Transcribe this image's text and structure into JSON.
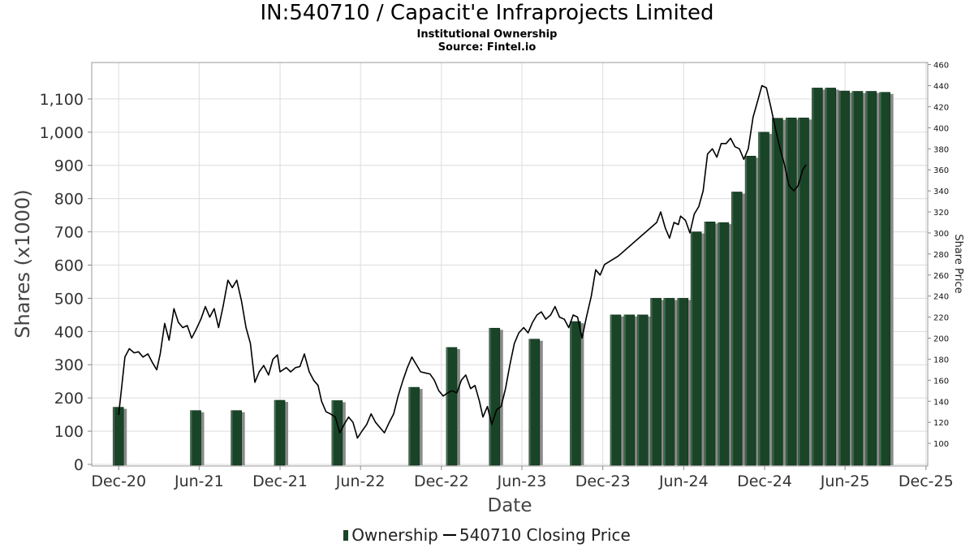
{
  "chart_data": {
    "type": "bar",
    "title": "IN:540710 / Capacit'e Infraprojects Limited",
    "subtitle": "Institutional Ownership",
    "source": "Source: Fintel.io",
    "xlabel": "Date",
    "ylabel": "Shares (x1000)",
    "y2label": "Share Price",
    "ylim": [
      0,
      1200
    ],
    "y2lim": [
      80,
      462
    ],
    "yticks": [
      "0",
      "100",
      "200",
      "300",
      "400",
      "500",
      "600",
      "700",
      "800",
      "900",
      "1,000",
      "1,100"
    ],
    "y2ticks": [
      "100",
      "120",
      "140",
      "160",
      "180",
      "200",
      "220",
      "240",
      "260",
      "280",
      "300",
      "320",
      "340",
      "360",
      "380",
      "400",
      "420",
      "440",
      "460"
    ],
    "xticks": [
      "Dec-20",
      "Jun-21",
      "Dec-21",
      "Jun-22",
      "Dec-22",
      "Jun-23",
      "Dec-23",
      "Jun-24",
      "Dec-24",
      "Jun-25",
      "Dec-25"
    ],
    "grid": true,
    "legend_position": "bottom",
    "colors": {
      "bar": "#1a4428",
      "bar_shadow": "#8a8a8a",
      "line": "#000000",
      "grid": "#dcdcdc"
    },
    "series": [
      {
        "name": "Ownership",
        "type": "bar",
        "points": [
          [
            "2020-12-01",
            172
          ],
          [
            "2021-05-25",
            162
          ],
          [
            "2021-08-25",
            162
          ],
          [
            "2021-12-01",
            193
          ],
          [
            "2022-04-10",
            192
          ],
          [
            "2022-10-01",
            232
          ],
          [
            "2022-12-25",
            352
          ],
          [
            "2023-04-01",
            410
          ],
          [
            "2023-06-30",
            377
          ],
          [
            "2023-10-01",
            430
          ],
          [
            "2023-12-31",
            450
          ],
          [
            "2024-01-31",
            450
          ],
          [
            "2024-03-01",
            450
          ],
          [
            "2024-03-31",
            500
          ],
          [
            "2024-04-30",
            500
          ],
          [
            "2024-05-31",
            500
          ],
          [
            "2024-06-30",
            700
          ],
          [
            "2024-07-31",
            730
          ],
          [
            "2024-08-31",
            728
          ],
          [
            "2024-09-30",
            820
          ],
          [
            "2024-10-31",
            928
          ],
          [
            "2024-11-30",
            1000
          ],
          [
            "2024-12-31",
            1042
          ],
          [
            "2025-01-31",
            1043
          ],
          [
            "2025-02-28",
            1043
          ],
          [
            "2025-03-31",
            1133
          ],
          [
            "2025-04-30",
            1133
          ],
          [
            "2025-05-31",
            1124
          ],
          [
            "2025-06-30",
            1123
          ],
          [
            "2025-07-31",
            1123
          ],
          [
            "2025-08-31",
            1120
          ]
        ]
      },
      {
        "name": "540710 Closing Price",
        "type": "line",
        "points": [
          [
            "2020-12-01",
            127
          ],
          [
            "2020-12-15",
            182
          ],
          [
            "2020-12-25",
            190
          ],
          [
            "2021-01-05",
            186
          ],
          [
            "2021-01-15",
            187
          ],
          [
            "2021-01-25",
            182
          ],
          [
            "2021-02-05",
            185
          ],
          [
            "2021-02-15",
            177
          ],
          [
            "2021-02-25",
            170
          ],
          [
            "2021-03-05",
            185
          ],
          [
            "2021-03-15",
            214
          ],
          [
            "2021-03-25",
            198
          ],
          [
            "2021-04-05",
            228
          ],
          [
            "2021-04-15",
            215
          ],
          [
            "2021-04-25",
            210
          ],
          [
            "2021-05-05",
            212
          ],
          [
            "2021-05-15",
            200
          ],
          [
            "2021-05-25",
            208
          ],
          [
            "2021-06-05",
            218
          ],
          [
            "2021-06-15",
            230
          ],
          [
            "2021-06-25",
            220
          ],
          [
            "2021-07-05",
            228
          ],
          [
            "2021-07-15",
            210
          ],
          [
            "2021-07-25",
            230
          ],
          [
            "2021-08-05",
            255
          ],
          [
            "2021-08-15",
            248
          ],
          [
            "2021-08-25",
            255
          ],
          [
            "2021-09-05",
            235
          ],
          [
            "2021-09-15",
            210
          ],
          [
            "2021-09-25",
            195
          ],
          [
            "2021-10-05",
            158
          ],
          [
            "2021-10-15",
            168
          ],
          [
            "2021-10-25",
            174
          ],
          [
            "2021-11-05",
            165
          ],
          [
            "2021-11-15",
            180
          ],
          [
            "2021-11-25",
            184
          ],
          [
            "2021-12-01",
            168
          ],
          [
            "2021-12-15",
            172
          ],
          [
            "2021-12-25",
            168
          ],
          [
            "2022-01-05",
            172
          ],
          [
            "2022-01-15",
            173
          ],
          [
            "2022-01-25",
            185
          ],
          [
            "2022-02-05",
            168
          ],
          [
            "2022-02-15",
            160
          ],
          [
            "2022-02-25",
            155
          ],
          [
            "2022-03-05",
            140
          ],
          [
            "2022-03-15",
            130
          ],
          [
            "2022-03-25",
            128
          ],
          [
            "2022-04-05",
            125
          ],
          [
            "2022-04-15",
            110
          ],
          [
            "2022-04-25",
            118
          ],
          [
            "2022-05-05",
            125
          ],
          [
            "2022-05-15",
            120
          ],
          [
            "2022-05-25",
            105
          ],
          [
            "2022-06-05",
            112
          ],
          [
            "2022-06-15",
            118
          ],
          [
            "2022-06-25",
            128
          ],
          [
            "2022-07-05",
            120
          ],
          [
            "2022-07-15",
            115
          ],
          [
            "2022-07-25",
            110
          ],
          [
            "2022-08-05",
            120
          ],
          [
            "2022-08-15",
            128
          ],
          [
            "2022-08-25",
            145
          ],
          [
            "2022-09-05",
            160
          ],
          [
            "2022-09-15",
            172
          ],
          [
            "2022-09-25",
            182
          ],
          [
            "2022-10-05",
            175
          ],
          [
            "2022-10-15",
            168
          ],
          [
            "2022-10-25",
            167
          ],
          [
            "2022-11-05",
            166
          ],
          [
            "2022-11-15",
            160
          ],
          [
            "2022-11-25",
            150
          ],
          [
            "2022-12-05",
            145
          ],
          [
            "2022-12-15",
            148
          ],
          [
            "2022-12-25",
            150
          ],
          [
            "2023-01-05",
            148
          ],
          [
            "2023-01-15",
            160
          ],
          [
            "2023-01-25",
            165
          ],
          [
            "2023-02-05",
            152
          ],
          [
            "2023-02-15",
            155
          ],
          [
            "2023-02-25",
            140
          ],
          [
            "2023-03-05",
            125
          ],
          [
            "2023-03-15",
            135
          ],
          [
            "2023-03-25",
            118
          ],
          [
            "2023-04-05",
            132
          ],
          [
            "2023-04-15",
            135
          ],
          [
            "2023-04-25",
            152
          ],
          [
            "2023-05-05",
            175
          ],
          [
            "2023-05-15",
            195
          ],
          [
            "2023-05-25",
            205
          ],
          [
            "2023-06-05",
            210
          ],
          [
            "2023-06-15",
            205
          ],
          [
            "2023-06-25",
            215
          ],
          [
            "2023-07-05",
            222
          ],
          [
            "2023-07-15",
            225
          ],
          [
            "2023-07-25",
            218
          ],
          [
            "2023-08-05",
            222
          ],
          [
            "2023-08-15",
            230
          ],
          [
            "2023-08-25",
            220
          ],
          [
            "2023-09-05",
            218
          ],
          [
            "2023-09-15",
            210
          ],
          [
            "2023-09-25",
            222
          ],
          [
            "2023-10-05",
            220
          ],
          [
            "2023-10-15",
            200
          ],
          [
            "2023-10-25",
            220
          ],
          [
            "2023-11-05",
            240
          ],
          [
            "2023-11-15",
            265
          ],
          [
            "2023-11-25",
            260
          ],
          [
            "2023-12-05",
            270
          ],
          [
            "2024-01-05",
            278
          ],
          [
            "2024-04-01",
            310
          ],
          [
            "2024-04-10",
            320
          ],
          [
            "2024-04-20",
            305
          ],
          [
            "2024-04-30",
            295
          ],
          [
            "2024-05-10",
            310
          ],
          [
            "2024-05-20",
            308
          ],
          [
            "2024-05-25",
            316
          ],
          [
            "2024-06-05",
            312
          ],
          [
            "2024-06-15",
            300
          ],
          [
            "2024-06-25",
            318
          ],
          [
            "2024-07-05",
            325
          ],
          [
            "2024-07-15",
            340
          ],
          [
            "2024-07-25",
            375
          ],
          [
            "2024-08-05",
            380
          ],
          [
            "2024-08-15",
            372
          ],
          [
            "2024-08-25",
            385
          ],
          [
            "2024-09-05",
            385
          ],
          [
            "2024-09-15",
            390
          ],
          [
            "2024-09-25",
            382
          ],
          [
            "2024-10-05",
            380
          ],
          [
            "2024-10-15",
            370
          ],
          [
            "2024-10-25",
            380
          ],
          [
            "2024-11-05",
            410
          ],
          [
            "2024-11-15",
            425
          ],
          [
            "2024-11-25",
            440
          ],
          [
            "2024-12-05",
            438
          ],
          [
            "2024-12-15",
            420
          ],
          [
            "2024-12-25",
            400
          ],
          [
            "2025-01-05",
            380
          ],
          [
            "2025-01-15",
            365
          ],
          [
            "2025-01-25",
            345
          ],
          [
            "2025-02-05",
            340
          ],
          [
            "2025-02-15",
            345
          ],
          [
            "2025-02-25",
            360
          ],
          [
            "2025-03-05",
            365
          ]
        ]
      }
    ]
  },
  "legend": {
    "ownership": "Ownership",
    "price": "540710 Closing Price"
  }
}
